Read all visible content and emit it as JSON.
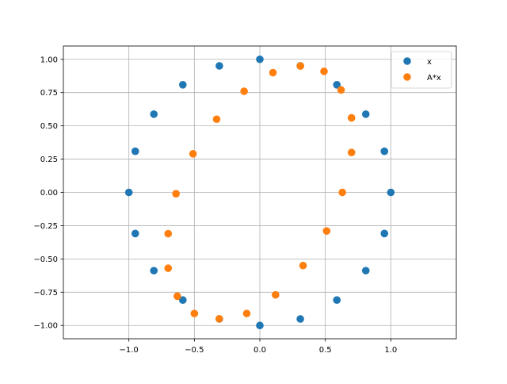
{
  "chart_data": {
    "type": "scatter",
    "title": "",
    "xlabel": "",
    "ylabel": "",
    "xlim": [
      -1.5,
      1.5
    ],
    "ylim": [
      -1.1,
      1.1
    ],
    "xticks": [
      -1.0,
      -0.5,
      0.0,
      0.5,
      1.0
    ],
    "xtick_labels": [
      "−1.0",
      "−0.5",
      "0.0",
      "0.5",
      "1.0"
    ],
    "yticks": [
      1.0,
      0.75,
      0.5,
      0.25,
      0.0,
      -0.25,
      -0.5,
      -0.75,
      -1.0
    ],
    "ytick_labels": [
      "1.00",
      "0.75",
      "0.50",
      "0.25",
      "0.00",
      "−0.25",
      "−0.50",
      "−0.75",
      "−1.00"
    ],
    "grid": true,
    "legend_position": "top-right",
    "series": [
      {
        "name": "x",
        "color": "#1f77b4",
        "points": [
          [
            1.0,
            0.0
          ],
          [
            0.951,
            0.309
          ],
          [
            0.809,
            0.588
          ],
          [
            0.588,
            0.809
          ],
          [
            0.309,
            0.951
          ],
          [
            0.0,
            1.0
          ],
          [
            -0.309,
            0.951
          ],
          [
            -0.588,
            0.809
          ],
          [
            -0.809,
            0.588
          ],
          [
            -0.951,
            0.309
          ],
          [
            -1.0,
            0.0
          ],
          [
            -0.951,
            -0.309
          ],
          [
            -0.809,
            -0.588
          ],
          [
            -0.588,
            -0.809
          ],
          [
            -0.309,
            -0.951
          ],
          [
            0.0,
            -1.0
          ],
          [
            0.309,
            -0.951
          ],
          [
            0.588,
            -0.809
          ],
          [
            0.809,
            -0.588
          ],
          [
            0.951,
            -0.309
          ]
        ]
      },
      {
        "name": "A*x",
        "color": "#ff7f0e",
        "points": [
          [
            0.63,
            0.0
          ],
          [
            0.7,
            0.3
          ],
          [
            0.7,
            0.56
          ],
          [
            0.62,
            0.77
          ],
          [
            0.49,
            0.91
          ],
          [
            0.31,
            0.95
          ],
          [
            0.1,
            0.9
          ],
          [
            -0.12,
            0.76
          ],
          [
            -0.33,
            0.55
          ],
          [
            -0.51,
            0.29
          ],
          [
            -0.64,
            -0.01
          ],
          [
            -0.7,
            -0.31
          ],
          [
            -0.7,
            -0.57
          ],
          [
            -0.63,
            -0.78
          ],
          [
            -0.5,
            -0.91
          ],
          [
            -0.31,
            -0.95
          ],
          [
            -0.1,
            -0.91
          ],
          [
            0.12,
            -0.77
          ],
          [
            0.33,
            -0.55
          ],
          [
            0.51,
            -0.29
          ]
        ]
      }
    ]
  }
}
